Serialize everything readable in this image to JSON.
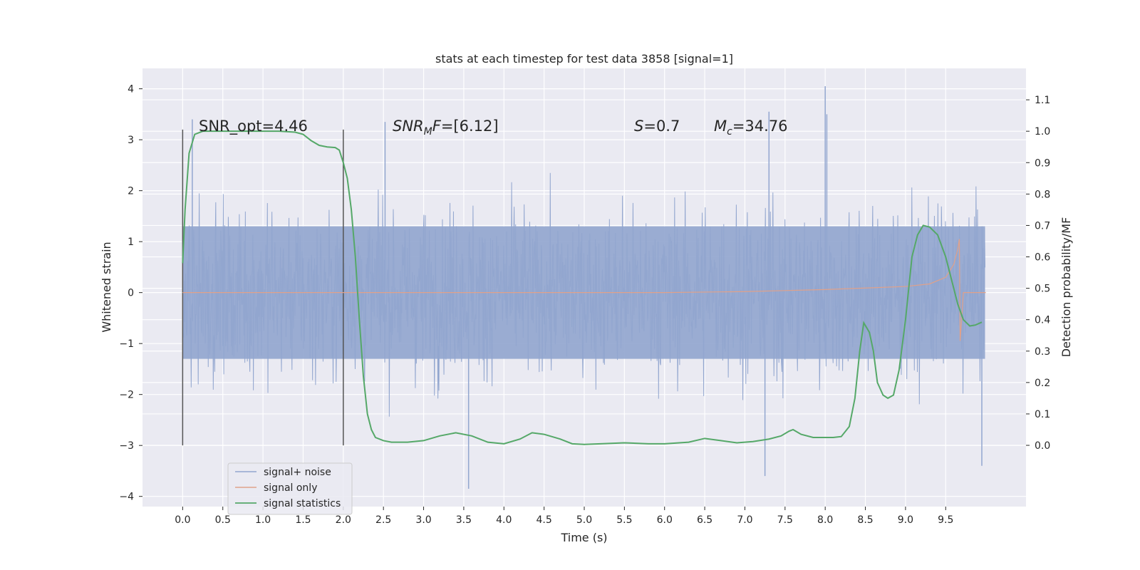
{
  "chart_data": {
    "type": "line",
    "title": "stats at each timestep for test data 3858 [signal=1]",
    "xlabel": "Time (s)",
    "ylabel": "Whitened strain",
    "y2label": "Detection probability/MF",
    "xlim": [
      -0.5,
      10.5
    ],
    "ylim": [
      -4.2,
      4.4
    ],
    "y2lim": [
      -0.195,
      1.2
    ],
    "x_ticks": [
      0.0,
      0.5,
      1.0,
      1.5,
      2.0,
      2.5,
      3.0,
      3.5,
      4.0,
      4.5,
      5.0,
      5.5,
      6.0,
      6.5,
      7.0,
      7.5,
      8.0,
      8.5,
      9.0,
      9.5
    ],
    "x_tick_labels": [
      "0.0",
      "0.5",
      "1.0",
      "1.5",
      "2.0",
      "2.5",
      "3.0",
      "3.5",
      "4.0",
      "4.5",
      "5.0",
      "5.5",
      "6.0",
      "6.5",
      "7.0",
      "7.5",
      "8.0",
      "8.5",
      "9.0",
      "9.5"
    ],
    "y_ticks": [
      4,
      3,
      2,
      1,
      0,
      -1,
      -2,
      -3,
      -4
    ],
    "y_tick_labels": [
      "4",
      "3",
      "2",
      "1",
      "0",
      "−1",
      "−2",
      "−3",
      "−4"
    ],
    "y2_ticks": [
      1.1,
      1.0,
      0.9,
      0.8,
      0.7,
      0.6,
      0.5,
      0.4,
      0.3,
      0.2,
      0.1,
      0.0
    ],
    "y2_tick_labels": [
      "1.1",
      "1.0",
      "0.9",
      "0.8",
      "0.7",
      "0.6",
      "0.5",
      "0.4",
      "0.3",
      "0.2",
      "0.1",
      "0.0"
    ],
    "grid": true,
    "legend_position": "lower-left",
    "series": [
      {
        "name": "signal+ noise",
        "axis": "left",
        "color": "#92a6cf",
        "x_range": [
          0.0,
          9.99
        ],
        "typical_band": [
          -1.3,
          1.3
        ],
        "notable_peaks": [
          [
            0.12,
            3.4
          ],
          [
            2.52,
            3.35
          ],
          [
            3.56,
            -3.85
          ],
          [
            7.25,
            -3.6
          ],
          [
            7.3,
            3.55
          ],
          [
            8.0,
            4.05
          ],
          [
            8.02,
            3.5
          ],
          [
            9.95,
            -3.4
          ]
        ]
      },
      {
        "name": "signal only",
        "axis": "left",
        "color": "#e0a18a",
        "points": [
          [
            0.0,
            0.0
          ],
          [
            6.0,
            0.0
          ],
          [
            6.5,
            0.01
          ],
          [
            7.0,
            0.02
          ],
          [
            7.5,
            0.04
          ],
          [
            8.0,
            0.06
          ],
          [
            8.5,
            0.09
          ],
          [
            9.0,
            0.12
          ],
          [
            9.3,
            0.17
          ],
          [
            9.5,
            0.3
          ],
          [
            9.6,
            0.55
          ],
          [
            9.65,
            0.85
          ],
          [
            9.67,
            1.05
          ],
          [
            9.68,
            -0.95
          ],
          [
            9.7,
            -0.5
          ],
          [
            9.72,
            0.0
          ],
          [
            10.0,
            0.0
          ]
        ]
      },
      {
        "name": "signal statistics",
        "axis": "right",
        "color": "#55a868",
        "points": [
          [
            0.0,
            0.58
          ],
          [
            0.03,
            0.75
          ],
          [
            0.08,
            0.93
          ],
          [
            0.15,
            0.99
          ],
          [
            0.25,
            1.0
          ],
          [
            0.5,
            1.0
          ],
          [
            1.0,
            1.0
          ],
          [
            1.2,
            1.0
          ],
          [
            1.4,
            0.997
          ],
          [
            1.5,
            0.99
          ],
          [
            1.6,
            0.97
          ],
          [
            1.7,
            0.955
          ],
          [
            1.8,
            0.95
          ],
          [
            1.9,
            0.948
          ],
          [
            1.95,
            0.94
          ],
          [
            2.0,
            0.9
          ],
          [
            2.05,
            0.85
          ],
          [
            2.1,
            0.75
          ],
          [
            2.15,
            0.6
          ],
          [
            2.2,
            0.4
          ],
          [
            2.25,
            0.22
          ],
          [
            2.3,
            0.1
          ],
          [
            2.35,
            0.05
          ],
          [
            2.4,
            0.025
          ],
          [
            2.5,
            0.015
          ],
          [
            2.6,
            0.01
          ],
          [
            2.8,
            0.01
          ],
          [
            3.0,
            0.015
          ],
          [
            3.2,
            0.03
          ],
          [
            3.4,
            0.04
          ],
          [
            3.6,
            0.03
          ],
          [
            3.8,
            0.01
          ],
          [
            4.0,
            0.005
          ],
          [
            4.2,
            0.02
          ],
          [
            4.35,
            0.04
          ],
          [
            4.5,
            0.035
          ],
          [
            4.7,
            0.02
          ],
          [
            4.85,
            0.005
          ],
          [
            5.0,
            0.003
          ],
          [
            5.2,
            0.005
          ],
          [
            5.5,
            0.008
          ],
          [
            5.8,
            0.005
          ],
          [
            6.0,
            0.005
          ],
          [
            6.3,
            0.01
          ],
          [
            6.5,
            0.022
          ],
          [
            6.7,
            0.015
          ],
          [
            6.9,
            0.008
          ],
          [
            7.1,
            0.012
          ],
          [
            7.3,
            0.02
          ],
          [
            7.45,
            0.03
          ],
          [
            7.55,
            0.045
          ],
          [
            7.6,
            0.05
          ],
          [
            7.7,
            0.035
          ],
          [
            7.85,
            0.025
          ],
          [
            8.0,
            0.025
          ],
          [
            8.1,
            0.025
          ],
          [
            8.2,
            0.028
          ],
          [
            8.3,
            0.06
          ],
          [
            8.37,
            0.15
          ],
          [
            8.43,
            0.3
          ],
          [
            8.48,
            0.39
          ],
          [
            8.55,
            0.36
          ],
          [
            8.6,
            0.3
          ],
          [
            8.65,
            0.2
          ],
          [
            8.72,
            0.16
          ],
          [
            8.78,
            0.15
          ],
          [
            8.85,
            0.16
          ],
          [
            8.92,
            0.24
          ],
          [
            9.0,
            0.4
          ],
          [
            9.08,
            0.6
          ],
          [
            9.15,
            0.67
          ],
          [
            9.22,
            0.7
          ],
          [
            9.3,
            0.695
          ],
          [
            9.4,
            0.67
          ],
          [
            9.5,
            0.6
          ],
          [
            9.57,
            0.53
          ],
          [
            9.65,
            0.45
          ],
          [
            9.72,
            0.4
          ],
          [
            9.8,
            0.38
          ],
          [
            9.87,
            0.383
          ],
          [
            9.95,
            0.392
          ]
        ]
      }
    ],
    "vlines": [
      {
        "x": 0.0,
        "y_from": -3.0,
        "y_to": 3.2
      },
      {
        "x": 2.0,
        "y_from": -3.0,
        "y_to": 3.2
      }
    ],
    "annotations": [
      {
        "id": "snr_opt",
        "prefix": "SNR_opt",
        "value": "=4.46"
      },
      {
        "id": "snr_mf",
        "base": "SNR",
        "sub": "M",
        "tail": "F",
        "value": "=[6.12]"
      },
      {
        "id": "s",
        "prefix": "S",
        "value": "=0.7"
      },
      {
        "id": "mc",
        "base": "M",
        "sub": "c",
        "value": "=34.76"
      }
    ]
  }
}
